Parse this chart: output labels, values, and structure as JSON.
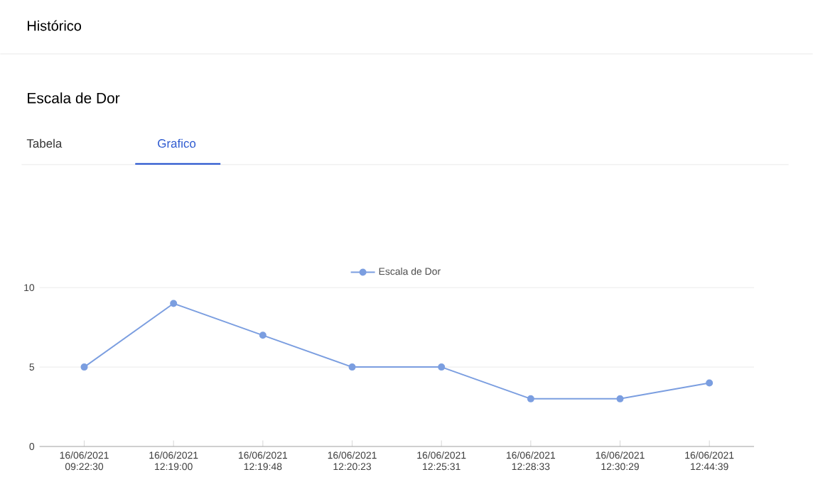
{
  "chart_data": {
    "type": "line",
    "title": "Histórico",
    "subtitle": "Escala de Dor",
    "annotations": [
      "Tabela",
      "Grafico"
    ],
    "categories": [
      "16/06/2021 09:22:30",
      "16/06/2021 12:19:00",
      "16/06/2021 12:19:48",
      "16/06/2021 12:20:23",
      "16/06/2021 12:25:31",
      "16/06/2021 12:28:33",
      "16/06/2021 12:30:29",
      "16/06/2021 12:44:39"
    ],
    "series": [
      {
        "name": "Escala de Dor",
        "color": "#7b9ee0",
        "values": [
          5,
          9,
          7,
          5,
          5,
          3,
          3,
          4
        ]
      }
    ],
    "ylim": [
      0,
      10
    ],
    "yticks": [
      0,
      5,
      10
    ],
    "grid": "y",
    "legend": "top",
    "marker": "circle",
    "line_style": "solid"
  }
}
